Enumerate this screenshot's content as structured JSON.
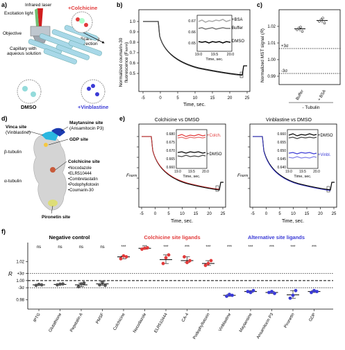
{
  "panels": {
    "a": {
      "label": "a)",
      "infrared_laser": "Infrared laser",
      "excitation_light": "Excitation light",
      "objective": "Objective",
      "scanning_direction": "Scanning direction",
      "capillary": "Capillary with aqueous solution",
      "colchicine": "+Colchicine",
      "dmso": "DMSO",
      "vinblastine": "+Vinblastine",
      "colors": {
        "red": "#e23b3b",
        "blue": "#3b3bd6",
        "laser": "#d11e1e",
        "capillary": "#a8d8e8"
      }
    },
    "b": {
      "label": "b)",
      "ylabel": "Normalized coumarin-30 fluorescence (Fnorm)",
      "xlabel": "Time, sec.",
      "xticks": [
        "-5",
        "0",
        "5",
        "10",
        "15",
        "20",
        "25"
      ],
      "yticks": [
        "1.0",
        "0.9",
        "0.8",
        "0.7",
        "0.6",
        "0.5"
      ],
      "inset": {
        "xlabel": "Time, sec.",
        "xticks": [
          "19.0",
          "19.5",
          "20.0"
        ],
        "yticks": [
          "0.67",
          "0.66",
          "0.65"
        ],
        "series": [
          "+BSA",
          "Buffer",
          "DMSO"
        ]
      }
    },
    "c": {
      "label": "c)",
      "ylabel": "Normalized MST signal (R)",
      "yticks": [
        "1.02",
        "1.01",
        "1.00",
        "0.99"
      ],
      "plus3sigma": "+3σ",
      "minus3sigma": "-3σ",
      "categories": [
        "Buffer",
        "+ BSA"
      ],
      "group_label": "- Tubulin"
    },
    "d": {
      "label": "d)",
      "vinca": "Vinca site",
      "vinca_sub": "(Vinblastine)",
      "maytansine": "Maytansine site",
      "maytansine_sub": "(Ansamitocin P3)",
      "gdp": "GDP site",
      "beta": "β-tubulin",
      "colchicine_site": "Colchicine site",
      "colchicine_ligands": [
        "•Nocodazole",
        "•ELR510444",
        "•Combretastatin",
        "•Podophyllotoxin",
        "•Coumarin-30"
      ],
      "alpha": "α-tubulin",
      "pironetin": "Pironetin site"
    },
    "e": {
      "label": "e)",
      "left_title": "Colchicine vs DMSO",
      "right_title": "Vinblastine vs DMSO",
      "ylabel": "Fnorm",
      "xlabel": "Time, sec.",
      "xticks": [
        "-5",
        "0",
        "5",
        "10",
        "15",
        "20",
        "25"
      ],
      "left_inset": {
        "yticks": [
          "0.680",
          "0.675",
          "0.670",
          "0.665",
          "0.660"
        ],
        "xticks": [
          "19.0",
          "19.5",
          "20.0"
        ],
        "xlabel": "Time, sec.",
        "s1": "+Colch.",
        "s2": "+DMSO"
      },
      "right_inset": {
        "yticks": [
          "0.660",
          "0.655",
          "0.650",
          "0.645",
          "0.640"
        ],
        "xticks": [
          "19.0",
          "19.5",
          "20.0"
        ],
        "xlabel": "Time, sec.",
        "s1": "+DMSO",
        "s2": "+Vinbl."
      }
    },
    "f": {
      "label": "f)",
      "group_neg": "Negative control",
      "group_colch": "Colchicine site ligands",
      "group_alt": "Alternative site ligands",
      "ylabel": "R",
      "yticks": [
        "1.02",
        "+3σ",
        "1.00",
        "-3σ",
        "0.98"
      ]
    }
  },
  "chart_data": [
    {
      "type": "scatter",
      "title": "",
      "ylabel": "R",
      "ylim": [
        0.97,
        1.04
      ],
      "categories": [
        "IPTG",
        "Glutathione",
        "Pepstatin A",
        "PMSF",
        "Colchicine",
        "Nocodazole",
        "ELR510444",
        "CA-4",
        "Podophyllotoxin",
        "Vinblastine",
        "Maytansine",
        "Ansamitocin P3",
        "Pironetin",
        "GDP"
      ],
      "significance": [
        "ns",
        "ns",
        "ns",
        "ns",
        "***",
        "***",
        "***",
        "***",
        "***",
        "***",
        "***",
        "***",
        "***",
        "***"
      ],
      "means": [
        0.9955,
        0.996,
        0.9955,
        0.9965,
        1.025,
        1.034,
        1.022,
        1.021,
        1.018,
        0.9845,
        0.9885,
        0.9875,
        0.985,
        0.9885
      ],
      "points": [
        [
          0.995,
          0.996,
          0.9955
        ],
        [
          0.9955,
          0.9962,
          0.9965
        ],
        [
          0.9935,
          0.9965,
          0.9975
        ],
        [
          0.9955,
          0.9985,
          0.995
        ],
        [
          1.023,
          1.026,
          1.025
        ],
        [
          1.033,
          1.034,
          1.0345
        ],
        [
          1.018,
          1.024,
          1.027
        ],
        [
          1.025,
          1.019,
          1.021
        ],
        [
          1.016,
          1.018,
          1.021
        ],
        [
          0.9835,
          0.9855,
          0.9845
        ],
        [
          0.9885,
          0.9875,
          0.9895
        ],
        [
          0.9875,
          0.9885,
          0.9865
        ],
        [
          0.9815,
          0.9845,
          0.9895
        ],
        [
          0.9875,
          0.9895,
          0.9885
        ]
      ],
      "hlines": {
        "solid_mean": 1.0,
        "plus3sigma": 1.0075,
        "minus3sigma": 0.9925
      },
      "colors": {
        "neg": "#555555",
        "colch": "#e23b3b",
        "alt": "#3b3bd6"
      }
    },
    {
      "type": "scatter",
      "ylabel": "Normalized MST signal (R)",
      "ylim": [
        0.985,
        1.03
      ],
      "categories": [
        "Buffer",
        "+ BSA"
      ],
      "points": [
        [
          1.018,
          1.019,
          1.0195,
          1.017
        ],
        [
          1.023,
          1.024,
          1.025,
          1.022
        ]
      ],
      "means": [
        1.0185,
        1.0235
      ]
    }
  ]
}
